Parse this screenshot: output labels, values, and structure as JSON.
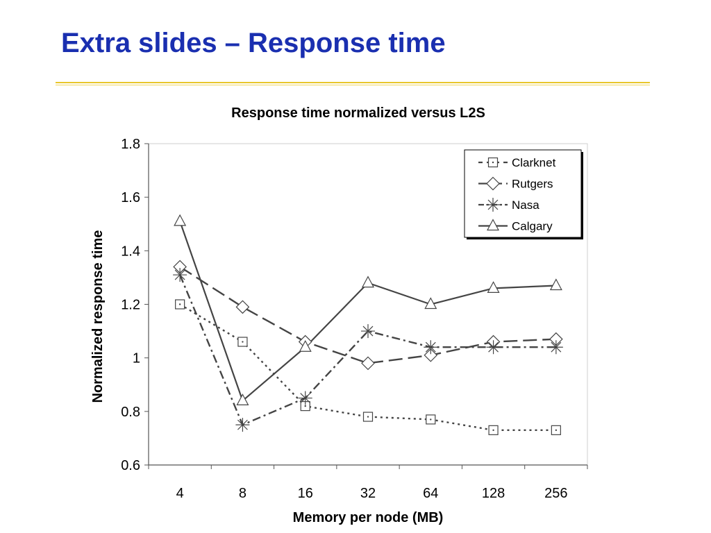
{
  "slide": {
    "title": "Extra slides – Response time"
  },
  "colors": {
    "title": "#1a2fb0",
    "rule": "#e8c62a",
    "series": "#444444"
  },
  "chart_data": {
    "type": "line",
    "title": "Response time normalized versus L2S",
    "xlabel": "Memory per node (MB)",
    "ylabel": "Normalized response time",
    "categories": [
      "4",
      "8",
      "16",
      "32",
      "64",
      "128",
      "256"
    ],
    "ylim": [
      0.6,
      1.8
    ],
    "yticks": [
      0.6,
      0.8,
      1,
      1.2,
      1.4,
      1.6,
      1.8
    ],
    "ytick_labels": [
      "0.6",
      "0.8",
      "1",
      "1.2",
      "1.4",
      "1.6",
      "1.8"
    ],
    "grid": false,
    "legend_position": "top-right",
    "series": [
      {
        "name": "Clarknet",
        "marker": "square",
        "line": "dotted",
        "values": [
          1.2,
          1.06,
          0.82,
          0.78,
          0.77,
          0.73,
          0.73
        ]
      },
      {
        "name": "Rutgers",
        "marker": "diamond",
        "line": "long-dash",
        "values": [
          1.34,
          1.19,
          1.06,
          0.98,
          1.01,
          1.06,
          1.07
        ]
      },
      {
        "name": "Nasa",
        "marker": "asterisk",
        "line": "dash-dot",
        "values": [
          1.31,
          0.75,
          0.85,
          1.1,
          1.04,
          1.04,
          1.04
        ]
      },
      {
        "name": "Calgary",
        "marker": "triangle",
        "line": "solid",
        "values": [
          1.51,
          0.84,
          1.04,
          1.28,
          1.2,
          1.26,
          1.27
        ]
      }
    ]
  }
}
